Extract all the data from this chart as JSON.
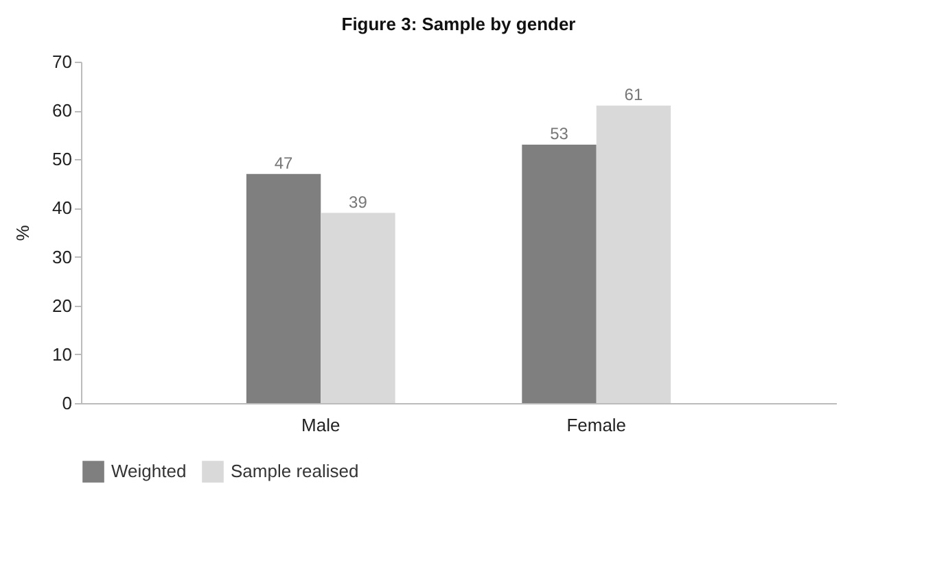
{
  "chart_data": {
    "type": "bar",
    "title": "Figure 3: Sample by gender",
    "ylabel": "%",
    "categories": [
      "Male",
      "Female"
    ],
    "series": [
      {
        "name": "Weighted",
        "color": "#7f7f7f",
        "values": [
          47,
          53
        ]
      },
      {
        "name": "Sample realised",
        "color": "#d9d9d9",
        "values": [
          39,
          61
        ]
      }
    ],
    "ylim": [
      0,
      70
    ],
    "yticks": [
      0,
      10,
      20,
      30,
      40,
      50,
      60,
      70
    ],
    "grid": false,
    "legend": "bottom",
    "data_labels": true
  }
}
